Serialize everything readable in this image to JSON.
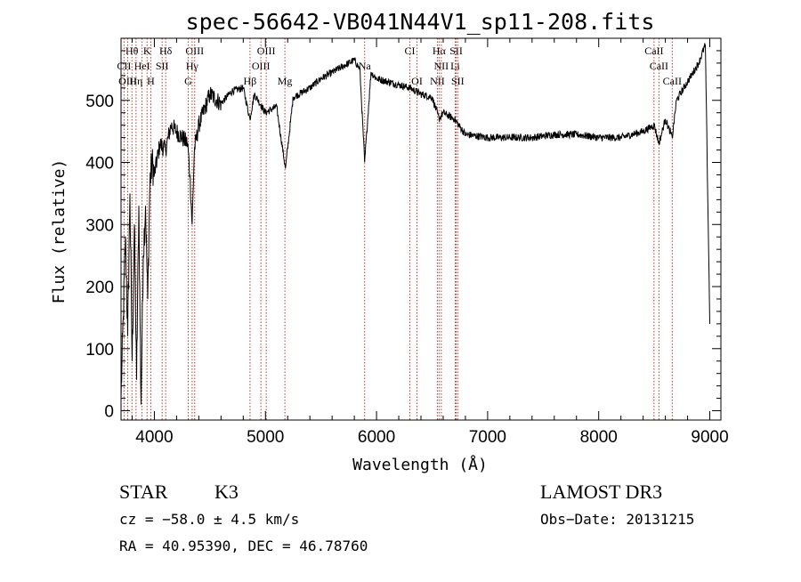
{
  "chart_data": {
    "type": "line",
    "title": "spec-56642-VB041N44V1_sp11-208.fits",
    "xlabel": "Wavelength (Å)",
    "ylabel": "Flux (relative)",
    "xlim": [
      3700,
      9100
    ],
    "ylim": [
      -15,
      600
    ],
    "xticks": [
      4000,
      5000,
      6000,
      7000,
      8000,
      9000
    ],
    "yticks": [
      0,
      100,
      200,
      300,
      400,
      500
    ],
    "xtick_labels": [
      "4000",
      "5000",
      "6000",
      "7000",
      "8000",
      "9000"
    ],
    "ytick_labels": [
      "0",
      "100",
      "200",
      "300",
      "400",
      "500"
    ],
    "grid": false,
    "series": [
      {
        "name": "flux",
        "x": [
          3700,
          3720,
          3740,
          3760,
          3780,
          3800,
          3820,
          3840,
          3860,
          3880,
          3900,
          3920,
          3940,
          3960,
          3980,
          4000,
          4050,
          4100,
          4150,
          4200,
          4250,
          4300,
          4320,
          4340,
          4360,
          4400,
          4500,
          4600,
          4700,
          4800,
          4860,
          4900,
          5000,
          5100,
          5180,
          5250,
          5400,
          5500,
          5600,
          5700,
          5800,
          5850,
          5893,
          5950,
          6000,
          6100,
          6200,
          6300,
          6400,
          6500,
          6563,
          6600,
          6700,
          6800,
          7000,
          7200,
          7400,
          7600,
          7800,
          8000,
          8200,
          8400,
          8500,
          8542,
          8600,
          8662,
          8700,
          8800,
          8900,
          8960,
          9000
        ],
        "y": [
          20,
          150,
          280,
          120,
          350,
          80,
          300,
          50,
          330,
          10,
          250,
          330,
          180,
          370,
          400,
          380,
          430,
          420,
          460,
          450,
          440,
          430,
          380,
          300,
          420,
          460,
          510,
          495,
          515,
          520,
          470,
          510,
          480,
          490,
          390,
          505,
          520,
          535,
          545,
          555,
          565,
          550,
          400,
          545,
          535,
          530,
          525,
          520,
          510,
          505,
          470,
          480,
          470,
          445,
          440,
          440,
          440,
          445,
          445,
          440,
          440,
          450,
          460,
          430,
          470,
          440,
          500,
          530,
          560,
          590,
          140
        ]
      }
    ],
    "spectral_lines": [
      {
        "label": "Hθ",
        "x": 3798,
        "row": 1
      },
      {
        "label": "K",
        "x": 3934,
        "row": 1
      },
      {
        "label": "Hδ",
        "x": 4102,
        "row": 1
      },
      {
        "label": "OIII",
        "x": 4363,
        "row": 1
      },
      {
        "label": "OIII",
        "x": 5007,
        "row": 1
      },
      {
        "label": "CI",
        "x": 6300,
        "row": 1
      },
      {
        "label": "Hα",
        "x": 6563,
        "row": 1
      },
      {
        "label": "SII",
        "x": 6717,
        "row": 1
      },
      {
        "label": "CaII",
        "x": 8498,
        "row": 1
      },
      {
        "label": "CII",
        "x": 3727,
        "row": 2
      },
      {
        "label": "HeI",
        "x": 3889,
        "row": 2
      },
      {
        "label": "SII",
        "x": 4070,
        "row": 2
      },
      {
        "label": "Hγ",
        "x": 4340,
        "row": 2
      },
      {
        "label": "OIII",
        "x": 4959,
        "row": 2
      },
      {
        "label": "Na",
        "x": 5893,
        "row": 2
      },
      {
        "label": "NII",
        "x": 6583,
        "row": 2
      },
      {
        "label": "Li",
        "x": 6708,
        "row": 2
      },
      {
        "label": "CaII",
        "x": 8542,
        "row": 2
      },
      {
        "label": "OIII",
        "x": 3760,
        "row": 3
      },
      {
        "label": "Hη",
        "x": 3835,
        "row": 3
      },
      {
        "label": "H",
        "x": 3968,
        "row": 3
      },
      {
        "label": "G",
        "x": 4305,
        "row": 3
      },
      {
        "label": "Hβ",
        "x": 4861,
        "row": 3
      },
      {
        "label": "Mg",
        "x": 5175,
        "row": 3
      },
      {
        "label": "OI",
        "x": 6364,
        "row": 3
      },
      {
        "label": "NII",
        "x": 6548,
        "row": 3
      },
      {
        "label": "SII",
        "x": 6731,
        "row": 3
      },
      {
        "label": "CaII",
        "x": 8662,
        "row": 3
      }
    ]
  },
  "info": {
    "class_label": "STAR",
    "subclass": "K3",
    "survey": "LAMOST DR3",
    "cz": "cz = −58.0 ± 4.5 km/s",
    "obs_date": "Obs−Date: 20131215",
    "coords": "RA =  40.95390, DEC =  46.78760"
  }
}
